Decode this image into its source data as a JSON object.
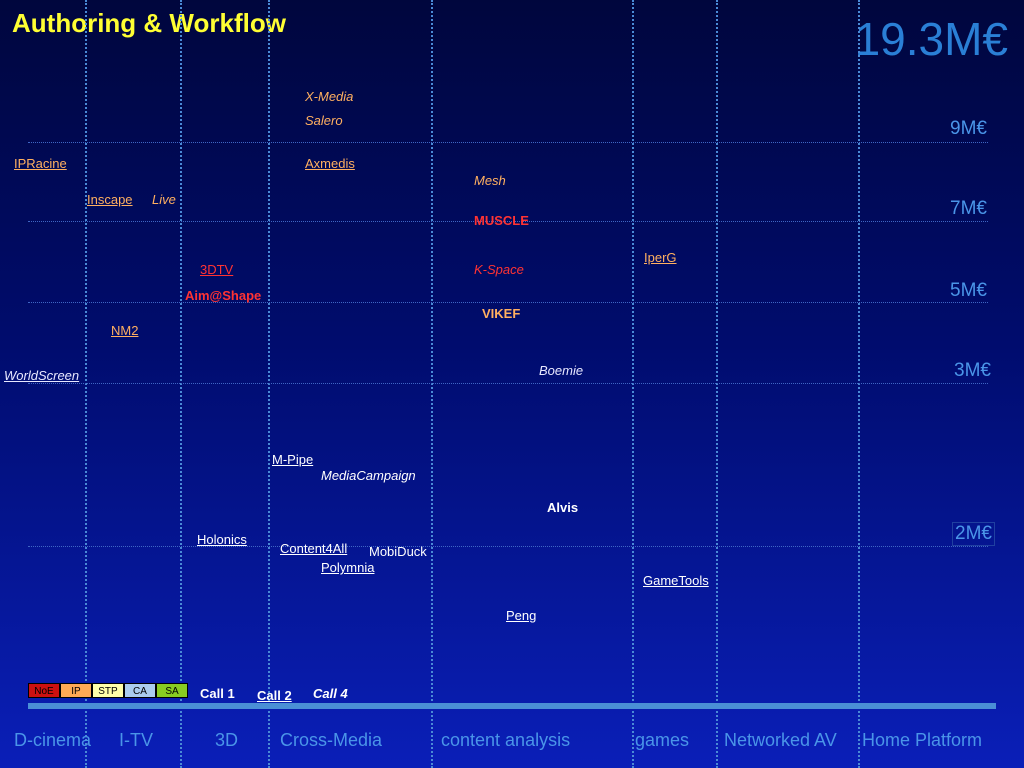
{
  "header": {
    "title": "Authoring & Workflow",
    "total": "19.3M€"
  },
  "levels": [
    "9M€",
    "7M€",
    "5M€",
    "3M€",
    "2M€"
  ],
  "projects": {
    "x_media": "X-Media",
    "salero": "Salero",
    "ipracine": "IPRacine",
    "axmedis": "Axmedis",
    "mesh": "Mesh",
    "inscape": "Inscape",
    "live": "Live",
    "muscle": "MUSCLE",
    "iperg": "IperG",
    "three_dtv": "3DTV",
    "k_space": "K-Space",
    "aim_at_shape": "Aim@Shape",
    "vikef": "VIKEF",
    "nm2": "NM2",
    "boemie": "Boemie",
    "worldscreen": "WorldScreen",
    "m_pipe": "M-Pipe",
    "mediacampaign": "MediaCampaign",
    "alvis": "Alvis",
    "holonics": "Holonics",
    "content4all": "Content4All",
    "mobiduck": "MobiDuck",
    "polymnia": "Polymnia",
    "gametools": "GameTools",
    "peng": "Peng"
  },
  "legend": [
    {
      "label": "NoE",
      "color": "#cc1111"
    },
    {
      "label": "IP",
      "color": "#ffaa55"
    },
    {
      "label": "STP",
      "color": "#ffffaa"
    },
    {
      "label": "CA",
      "color": "#aaccee"
    },
    {
      "label": "SA",
      "color": "#88cc22"
    }
  ],
  "calls": [
    "Call 1",
    "Call 2",
    "Call 4"
  ],
  "categories": [
    "D-cinema",
    "I-TV",
    "3D",
    "Cross-Media",
    "content analysis",
    "games",
    "Networked AV",
    "Home Platform"
  ]
}
